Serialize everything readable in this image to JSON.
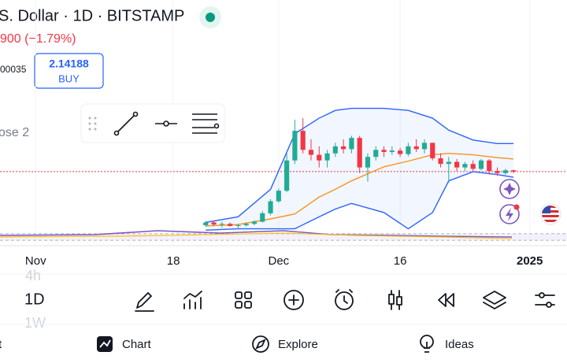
{
  "header": {
    "symbol": "S. Dollar · 1D · BITSTAMP",
    "change": "900 (−1.79%)",
    "left_value": "00035",
    "buy_price": 2.14188,
    "buy_label": "BUY",
    "indicator_label": "ose 2"
  },
  "chart_data": {
    "type": "candlestick",
    "x": [
      22,
      23,
      24,
      25,
      26,
      27,
      28,
      29,
      30,
      31,
      32,
      33,
      34,
      35,
      36,
      37,
      38,
      39,
      40,
      41,
      42,
      43,
      44,
      45,
      46,
      47,
      48,
      49,
      50,
      51,
      52,
      53,
      54,
      55,
      56,
      57,
      58,
      59,
      60
    ],
    "open": [
      1.38,
      1.42,
      1.39,
      1.4,
      1.37,
      1.38,
      1.4,
      1.43,
      1.55,
      1.72,
      1.87,
      2.3,
      2.72,
      2.45,
      2.38,
      2.3,
      2.4,
      2.5,
      2.46,
      2.62,
      2.2,
      2.35,
      2.45,
      2.42,
      2.44,
      2.39,
      2.5,
      2.46,
      2.55,
      2.33,
      2.25,
      2.28,
      2.2,
      2.25,
      2.18,
      2.3,
      2.15,
      2.12,
      2.16
    ],
    "high": [
      1.44,
      1.45,
      1.43,
      1.42,
      1.4,
      1.42,
      1.45,
      1.58,
      1.75,
      1.9,
      2.4,
      2.88,
      2.9,
      2.6,
      2.5,
      2.45,
      2.55,
      2.6,
      2.65,
      2.65,
      2.4,
      2.5,
      2.5,
      2.5,
      2.48,
      2.55,
      2.6,
      2.6,
      2.55,
      2.4,
      2.35,
      2.32,
      2.28,
      2.3,
      2.32,
      2.32,
      2.2,
      2.18,
      2.17
    ],
    "low": [
      1.36,
      1.37,
      1.35,
      1.36,
      1.34,
      1.36,
      1.38,
      1.42,
      1.52,
      1.7,
      1.85,
      2.25,
      2.4,
      2.3,
      2.2,
      2.2,
      2.35,
      2.4,
      2.4,
      2.12,
      2.0,
      2.3,
      2.35,
      2.38,
      2.35,
      2.36,
      2.42,
      2.4,
      2.3,
      2.2,
      1.98,
      2.15,
      2.15,
      2.15,
      2.16,
      2.1,
      2.08,
      2.1,
      2.12
    ],
    "close": [
      1.42,
      1.39,
      1.4,
      1.37,
      1.38,
      1.4,
      1.43,
      1.55,
      1.72,
      1.87,
      2.3,
      2.72,
      2.45,
      2.38,
      2.3,
      2.4,
      2.5,
      2.46,
      2.62,
      2.2,
      2.35,
      2.45,
      2.42,
      2.44,
      2.39,
      2.5,
      2.46,
      2.55,
      2.33,
      2.25,
      2.28,
      2.2,
      2.25,
      2.18,
      2.3,
      2.15,
      2.12,
      2.16,
      2.14
    ],
    "up_color": "#22ab94",
    "down_color": "#f23645",
    "overlay_x": [
      22,
      26,
      30,
      33,
      36,
      38,
      40,
      44,
      47,
      50,
      52,
      55,
      58,
      60
    ],
    "overlays": [
      {
        "color": "#2962ff",
        "values": [
          1.42,
          1.5,
          1.89,
          2.68,
          2.9,
          3.01,
          3.04,
          3.04,
          3.01,
          2.9,
          2.73,
          2.59,
          2.54,
          2.54
        ]
      },
      {
        "color": "#f7931a",
        "values": [
          1.37,
          1.39,
          1.47,
          1.54,
          1.78,
          1.89,
          2.01,
          2.21,
          2.29,
          2.38,
          2.4,
          2.38,
          2.34,
          2.32
        ]
      },
      {
        "color": "#2962ff",
        "values": [
          1.31,
          1.33,
          1.33,
          1.33,
          1.5,
          1.61,
          1.69,
          1.56,
          1.33,
          1.56,
          2.01,
          2.14,
          2.1,
          2.06
        ]
      }
    ],
    "xlim": [
      -3.4,
      66.6
    ],
    "ylim": [
      1.28,
      4.13
    ],
    "xticks": [
      {
        "value": 1,
        "label": "Nov"
      },
      18,
      {
        "value": 31,
        "label": "Dec"
      },
      {
        "value": 46,
        "label": "16"
      },
      {
        "value": 62,
        "label": "2025"
      }
    ]
  },
  "toolbar": {
    "interval": "1D",
    "interval_above": "4h",
    "interval_below": "1W"
  },
  "nav": {
    "first": "t",
    "chart": "Chart",
    "explore": "Explore",
    "ideas": "Ideas"
  }
}
